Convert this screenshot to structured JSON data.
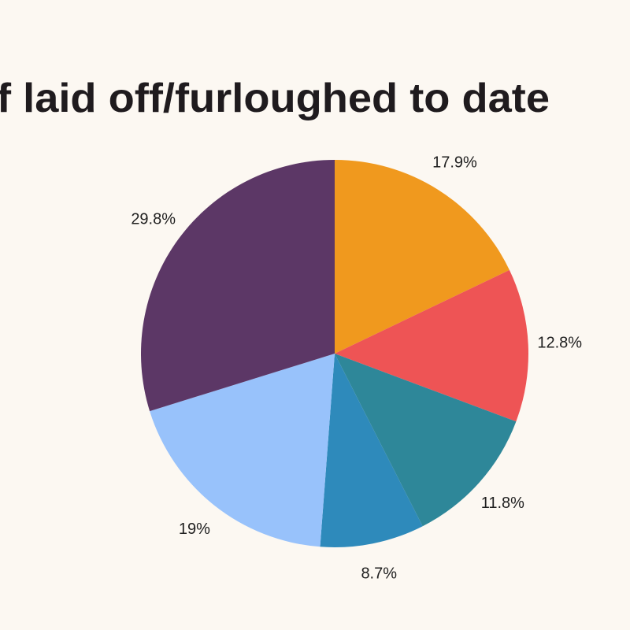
{
  "chart_data": {
    "type": "pie",
    "title": "f laid off/furloughed to date",
    "categories": [
      null,
      null,
      null,
      null,
      null,
      null
    ],
    "values": [
      17.9,
      12.8,
      11.8,
      8.7,
      19,
      29.8
    ],
    "value_labels": [
      "17.9%",
      "12.8%",
      "11.8%",
      "8.7%",
      "19%",
      "29.8%"
    ],
    "colors": [
      "#f0991e",
      "#ee5455",
      "#2e8799",
      "#2e8abb",
      "#98c2fb",
      "#5c3766"
    ]
  }
}
